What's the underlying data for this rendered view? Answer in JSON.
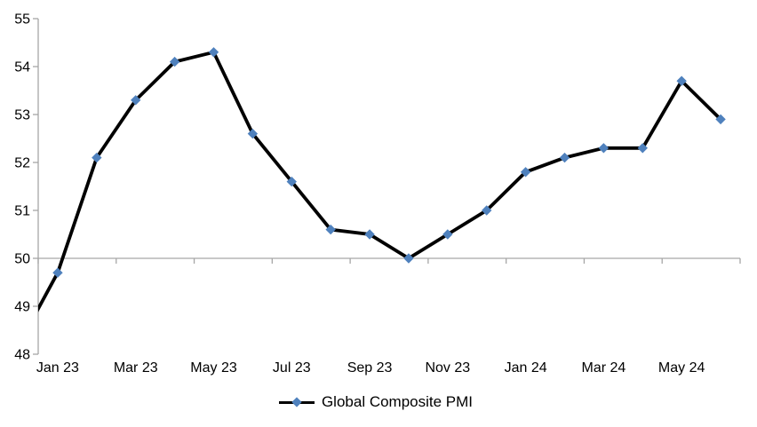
{
  "chart_data": {
    "type": "line",
    "title": "",
    "series_name": "Global Composite PMI",
    "marker_shape": "diamond",
    "legend_position": "bottom-center",
    "grid": "off",
    "y_axis": {
      "ylim": [
        48,
        55
      ],
      "tick_step": 1,
      "tick_labels": [
        "48",
        "49",
        "50",
        "51",
        "52",
        "53",
        "54",
        "55"
      ]
    },
    "x_axis": {
      "crosses_at_value": 50,
      "tick_mark_every_n_categories": 2,
      "labeled_categories": [
        "Jan 23",
        "Mar 23",
        "May 23",
        "Jul 23",
        "Sep 23",
        "Nov 23",
        "Jan 24",
        "Mar 24",
        "May 24"
      ]
    },
    "points": [
      {
        "label": "Dec 22",
        "value": 48.2,
        "clipped": true
      },
      {
        "label": "Jan 23",
        "value": 49.7
      },
      {
        "label": "Feb 23",
        "value": 52.1
      },
      {
        "label": "Mar 23",
        "value": 53.3
      },
      {
        "label": "Apr 23",
        "value": 54.1
      },
      {
        "label": "May 23",
        "value": 54.3
      },
      {
        "label": "Jun 23",
        "value": 52.6
      },
      {
        "label": "Jul 23",
        "value": 51.6
      },
      {
        "label": "Aug 23",
        "value": 50.6
      },
      {
        "label": "Sep 23",
        "value": 50.5
      },
      {
        "label": "Oct 23",
        "value": 50.0
      },
      {
        "label": "Nov 23",
        "value": 50.5
      },
      {
        "label": "Dec 23",
        "value": 51.0
      },
      {
        "label": "Jan 24",
        "value": 51.8
      },
      {
        "label": "Feb 24",
        "value": 52.1
      },
      {
        "label": "Mar 24",
        "value": 52.3
      },
      {
        "label": "Apr 24",
        "value": 52.3
      },
      {
        "label": "May 24",
        "value": 53.7
      },
      {
        "label": "Jun 24",
        "value": 52.9
      }
    ],
    "colors": {
      "series_line": "#000000",
      "marker_fill": "#4F81BD",
      "axis_line": "#A6A6A6",
      "label_text": "#000000",
      "background": "#FFFFFF"
    }
  }
}
